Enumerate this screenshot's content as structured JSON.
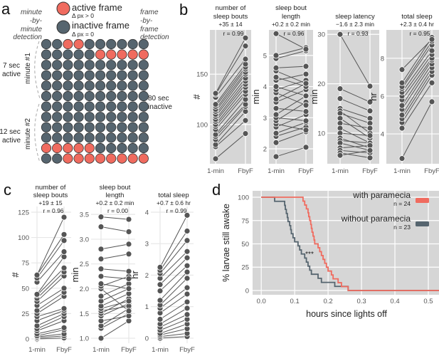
{
  "panel_labels": [
    "a",
    "b",
    "c",
    "d"
  ],
  "panel_a": {
    "legend": [
      {
        "label": "active frame",
        "sub": "Δ px > 0",
        "color": "#f06b5f"
      },
      {
        "label": "inactive frame",
        "sub": "Δ px = 0",
        "color": "#56656f"
      }
    ],
    "left_heading": [
      "minute",
      "-by-",
      "minute",
      "detection"
    ],
    "right_heading": [
      "frame",
      "-by-",
      "frame",
      "detection"
    ],
    "minute1_label": "minute #1",
    "minute2_label": "minute #2",
    "minute1_active": [
      "7 sec",
      "active"
    ],
    "minute2_active": [
      "12 sec",
      "active"
    ],
    "inactive_span": [
      "80 sec",
      "inactive"
    ],
    "frames": [
      "0011000000",
      "0000011111",
      "0000000000",
      "0000000000",
      "0000000000",
      "0000000000",
      "0000000000",
      "0000000000",
      "0000000000",
      "0000000000",
      "1111100000",
      "0011111111"
    ]
  },
  "chart_data": [
    {
      "id": "b1",
      "type": "paired-line",
      "panel": "b",
      "title": [
        "number of",
        "sleep bouts"
      ],
      "stat": "+35 ± 14",
      "r": "r = 0.99",
      "ylabel": "#",
      "categories": [
        "1-min",
        "FbyF"
      ],
      "ylim": [
        61,
        194
      ],
      "yticks": [
        100,
        150
      ],
      "pairs": [
        [
          66,
          91
        ],
        [
          78,
          104
        ],
        [
          80,
          113
        ],
        [
          85,
          118
        ],
        [
          88,
          120
        ],
        [
          90,
          125
        ],
        [
          95,
          130
        ],
        [
          98,
          133
        ],
        [
          100,
          137
        ],
        [
          103,
          140
        ],
        [
          105,
          143
        ],
        [
          108,
          146
        ],
        [
          110,
          150
        ],
        [
          113,
          152
        ],
        [
          115,
          155
        ],
        [
          118,
          157
        ],
        [
          120,
          160
        ],
        [
          127,
          165
        ],
        [
          130,
          178
        ],
        [
          131,
          186
        ]
      ]
    },
    {
      "id": "b2",
      "type": "paired-line",
      "panel": "b",
      "title": [
        "sleep bout",
        "length"
      ],
      "stat": "+0.2 ± 0.2 min",
      "r": "r = 0.96",
      "ylabel": "min",
      "categories": [
        "1-min",
        "FbyF"
      ],
      "ylim": [
        1.52,
        5.82
      ],
      "yticks": [
        2,
        3,
        4,
        5
      ],
      "pairs": [
        [
          1.75,
          2.05
        ],
        [
          2.2,
          2.55
        ],
        [
          2.4,
          2.7
        ],
        [
          2.5,
          2.85
        ],
        [
          2.7,
          3.1
        ],
        [
          2.8,
          2.6
        ],
        [
          2.9,
          3.5
        ],
        [
          3.0,
          2.9
        ],
        [
          3.1,
          3.7
        ],
        [
          3.3,
          3.2
        ],
        [
          3.5,
          3.9
        ],
        [
          3.6,
          4.1
        ],
        [
          3.8,
          3.4
        ],
        [
          3.9,
          4.2
        ],
        [
          4.0,
          3.7
        ],
        [
          4.2,
          4.4
        ],
        [
          4.3,
          4.0
        ],
        [
          4.5,
          4.1
        ],
        [
          4.6,
          4.65
        ],
        [
          4.9,
          5.15
        ],
        [
          5.0,
          5.25
        ],
        [
          5.7,
          5.2
        ]
      ]
    },
    {
      "id": "b3",
      "type": "paired-line",
      "panel": "b",
      "title": [
        "",
        "sleep latency"
      ],
      "stat": "−1.6 ± 2.3 min",
      "r": "r = 0.93",
      "ylabel": "min",
      "categories": [
        "1-min",
        "FbyF"
      ],
      "ylim": [
        3.8,
        30.9
      ],
      "yticks": [
        10,
        20,
        30
      ],
      "pairs": [
        [
          30,
          19.5
        ],
        [
          19,
          16.3
        ],
        [
          17,
          14.5
        ],
        [
          15,
          13
        ],
        [
          14.5,
          10
        ],
        [
          14,
          12
        ],
        [
          13,
          9
        ],
        [
          12,
          11
        ],
        [
          11,
          8
        ],
        [
          10,
          9.5
        ],
        [
          9,
          7
        ],
        [
          8.5,
          8
        ],
        [
          8,
          6.5
        ],
        [
          7,
          7.5
        ],
        [
          6.5,
          6
        ],
        [
          6,
          5
        ],
        [
          5.5,
          6.5
        ]
      ]
    },
    {
      "id": "b4",
      "type": "paired-line",
      "panel": "b",
      "title": [
        "",
        "total sleep"
      ],
      "stat": "+2.3 ± 0.4 hr",
      "r": "r = 0.95",
      "ylabel": "hr",
      "categories": [
        "1-min",
        "FbyF"
      ],
      "ylim": [
        2.42,
        9.5
      ],
      "yticks": [
        4,
        6,
        8
      ],
      "pairs": [
        [
          2.7,
          5.7
        ],
        [
          4.3,
          6.7
        ],
        [
          4.6,
          7.1
        ],
        [
          4.8,
          7.3
        ],
        [
          5.0,
          7.5
        ],
        [
          5.3,
          7.7
        ],
        [
          5.5,
          7.9
        ],
        [
          5.8,
          8.0
        ],
        [
          6.0,
          8.2
        ],
        [
          6.2,
          8.4
        ],
        [
          6.4,
          8.7
        ],
        [
          6.5,
          8.9
        ],
        [
          6.7,
          9.1
        ],
        [
          7.4,
          9.0
        ]
      ]
    },
    {
      "id": "c1",
      "type": "paired-line",
      "panel": "c",
      "title": [
        "number of",
        "sleep bouts"
      ],
      "stat": "+19 ± 15",
      "r": "r = 0.96",
      "ylabel": "#",
      "categories": [
        "1-min",
        "FbyF"
      ],
      "ylim": [
        -4.2,
        130.6
      ],
      "yticks": [
        0,
        25,
        50,
        75,
        100,
        125
      ],
      "pairs": [
        [
          0,
          1
        ],
        [
          1,
          3
        ],
        [
          2,
          5
        ],
        [
          3,
          9
        ],
        [
          5,
          11
        ],
        [
          8,
          18
        ],
        [
          10,
          22
        ],
        [
          13,
          25
        ],
        [
          18,
          28
        ],
        [
          22,
          30
        ],
        [
          25,
          42
        ],
        [
          28,
          46
        ],
        [
          33,
          50
        ],
        [
          37,
          62
        ],
        [
          40,
          66
        ],
        [
          43,
          70
        ],
        [
          44,
          81
        ],
        [
          56,
          86
        ],
        [
          60,
          97
        ],
        [
          63,
          103
        ],
        [
          63,
          120
        ]
      ]
    },
    {
      "id": "c2",
      "type": "paired-line",
      "panel": "c",
      "title": [
        "sleep bout",
        "length"
      ],
      "stat": "+0.2 ± 0.2 min",
      "r": "r = 0.00",
      "ylabel": "min",
      "categories": [
        "1-min",
        "FbyF"
      ],
      "ylim": [
        0.9,
        3.66
      ],
      "yticks": [
        1.0,
        1.5,
        2.0,
        2.5,
        3.0,
        3.5
      ],
      "pairs": [
        [
          1.0,
          1.35
        ],
        [
          1.2,
          1.5
        ],
        [
          1.25,
          1.6
        ],
        [
          1.35,
          1.45
        ],
        [
          1.45,
          1.7
        ],
        [
          1.5,
          1.8
        ],
        [
          1.55,
          1.65
        ],
        [
          1.6,
          1.75
        ],
        [
          1.65,
          1.9
        ],
        [
          1.75,
          2.0
        ],
        [
          1.85,
          2.1
        ],
        [
          2.0,
          1.55
        ],
        [
          2.05,
          2.25
        ],
        [
          2.1,
          2.0
        ],
        [
          2.25,
          2.2
        ],
        [
          2.4,
          2.35
        ],
        [
          2.6,
          2.7
        ],
        [
          2.8,
          2.9
        ],
        [
          3.25,
          3.15
        ],
        [
          3.45,
          3.4
        ]
      ]
    },
    {
      "id": "c3",
      "type": "paired-line",
      "panel": "c",
      "title": [
        "",
        "total sleep"
      ],
      "stat": "+0.7 ± 0.6 hr",
      "r": "r = 0.99",
      "ylabel": "hr",
      "categories": [
        "1-min",
        "FbyF"
      ],
      "ylim": [
        -0.16,
        4.18
      ],
      "yticks": [
        0,
        1,
        2,
        3,
        4
      ],
      "pairs": [
        [
          0,
          0.05
        ],
        [
          0.05,
          0.15
        ],
        [
          0.1,
          0.3
        ],
        [
          0.15,
          0.45
        ],
        [
          0.25,
          0.6
        ],
        [
          0.35,
          0.75
        ],
        [
          0.45,
          0.95
        ],
        [
          0.6,
          1.15
        ],
        [
          0.8,
          1.4
        ],
        [
          0.95,
          1.6
        ],
        [
          1.05,
          1.9
        ],
        [
          1.2,
          2.1
        ],
        [
          1.5,
          2.3
        ],
        [
          1.7,
          2.55
        ],
        [
          1.9,
          2.75
        ],
        [
          2.05,
          3.1
        ],
        [
          2.15,
          3.4
        ],
        [
          2.25,
          3.9
        ]
      ]
    },
    {
      "id": "d",
      "type": "line",
      "panel": "d",
      "xlabel": "hours since lights off",
      "ylabel": "% larvae still awake",
      "xlim": [
        -0.026,
        0.532
      ],
      "ylim": [
        -4.6,
        106.9
      ],
      "xticks": [
        0.0,
        0.1,
        0.2,
        0.3,
        0.4,
        0.5
      ],
      "yticks": [
        0,
        25,
        50,
        75,
        100
      ],
      "annotation": "***",
      "grid": true,
      "legend_position": "top-right",
      "series": [
        {
          "name": "with paramecia",
          "n": "n = 24",
          "color": "#f06b5f",
          "event_times": [
            0.125,
            0.13,
            0.135,
            0.14,
            0.142,
            0.145,
            0.148,
            0.15,
            0.152,
            0.155,
            0.158,
            0.16,
            0.17,
            0.175,
            0.18,
            0.185,
            0.19,
            0.195,
            0.2,
            0.21,
            0.215,
            0.23,
            0.24,
            0.26
          ]
        },
        {
          "name": "without paramecia",
          "n": "n = 23",
          "color": "#56656f",
          "event_times": [
            0.04,
            0.07,
            0.072,
            0.075,
            0.078,
            0.08,
            0.085,
            0.088,
            0.09,
            0.095,
            0.1,
            0.11,
            0.115,
            0.12,
            0.13,
            0.135,
            0.14,
            0.145,
            0.15,
            0.17,
            0.18,
            0.22,
            0.26
          ]
        }
      ]
    }
  ]
}
